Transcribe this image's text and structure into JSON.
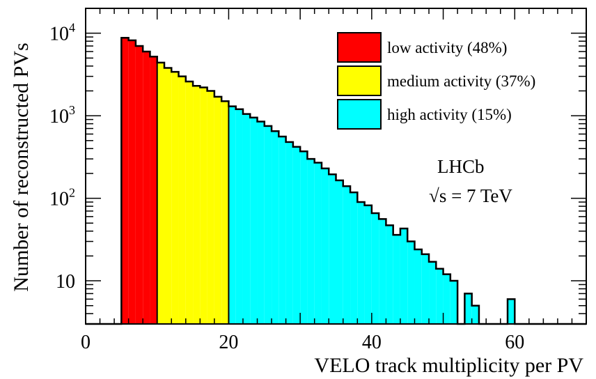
{
  "chart_data": {
    "type": "bar",
    "title": "",
    "xlabel": "VELO track multiplicity per PV",
    "ylabel": "Number of reconstructed PVs",
    "y_scale": "log",
    "xlim": [
      0,
      70
    ],
    "ylim": [
      3,
      20000
    ],
    "grid": false,
    "legend_position": "top-right",
    "bin_width": 1,
    "bin_edges_start": 5,
    "x_ticks": [
      0,
      20,
      40,
      60
    ],
    "x_tick_labels": [
      "0",
      "20",
      "40",
      "60"
    ],
    "y_ticks": [
      10,
      100,
      1000,
      10000
    ],
    "y_tick_labels": [
      {
        "base": "10",
        "exp": ""
      },
      {
        "base": "10",
        "exp": "2"
      },
      {
        "base": "10",
        "exp": "3"
      },
      {
        "base": "10",
        "exp": "4"
      }
    ],
    "series": [
      {
        "name": "low activity (48%)",
        "color": "#ff0000",
        "x": [
          5,
          6,
          7,
          8,
          9
        ],
        "values": [
          8800,
          8200,
          7000,
          6000,
          5200
        ]
      },
      {
        "name": "medium activity (37%)",
        "color": "#ffff00",
        "x": [
          10,
          11,
          12,
          13,
          14,
          15,
          16,
          17,
          18,
          19
        ],
        "values": [
          4400,
          3800,
          3400,
          3000,
          2600,
          2300,
          2200,
          2000,
          1700,
          1500
        ]
      },
      {
        "name": "high activity (15%)",
        "color": "#00ffff",
        "x": [
          20,
          21,
          22,
          23,
          24,
          25,
          26,
          27,
          28,
          29,
          30,
          31,
          32,
          33,
          34,
          35,
          36,
          37,
          38,
          39,
          40,
          41,
          42,
          43,
          44,
          45,
          46,
          47,
          48,
          49,
          50,
          51,
          52,
          53,
          54,
          55,
          56,
          57,
          58,
          59,
          60
        ],
        "values": [
          1300,
          1200,
          1050,
          950,
          850,
          750,
          650,
          560,
          480,
          420,
          370,
          300,
          270,
          230,
          195,
          165,
          140,
          118,
          90,
          82,
          66,
          56,
          47,
          36,
          43,
          30,
          24,
          21,
          17,
          14,
          12,
          10,
          0,
          7,
          5,
          0,
          0,
          0,
          0,
          6,
          0
        ]
      }
    ],
    "annotations": [
      {
        "text": "LHCb"
      },
      {
        "text": "√s = 7 TeV"
      }
    ]
  }
}
